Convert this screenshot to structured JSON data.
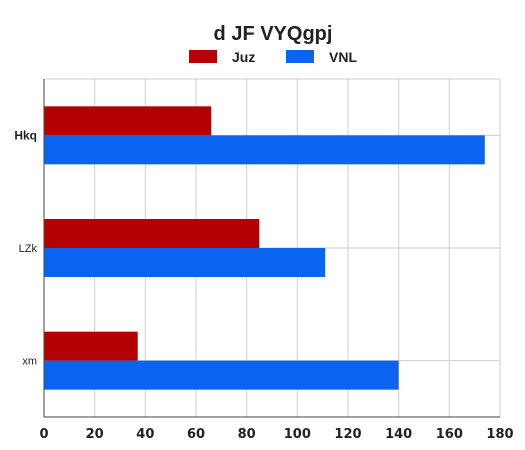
{
  "chart_data": {
    "type": "bar",
    "orientation": "horizontal",
    "title": "d JF VYQgpj",
    "categories": [
      "Hkq",
      "LZk",
      "xm"
    ],
    "series": [
      {
        "name": "Juz",
        "color": "#b50000",
        "values": [
          66,
          85,
          37
        ]
      },
      {
        "name": "VNL",
        "color": "#0a64f0",
        "values": [
          174,
          111,
          140
        ]
      }
    ],
    "xlim": [
      0,
      180
    ],
    "xticks": [
      0,
      20,
      40,
      60,
      80,
      100,
      120,
      140,
      160,
      180
    ],
    "grid": true,
    "legend_position": "top-center",
    "bold_category": "Hkq"
  }
}
